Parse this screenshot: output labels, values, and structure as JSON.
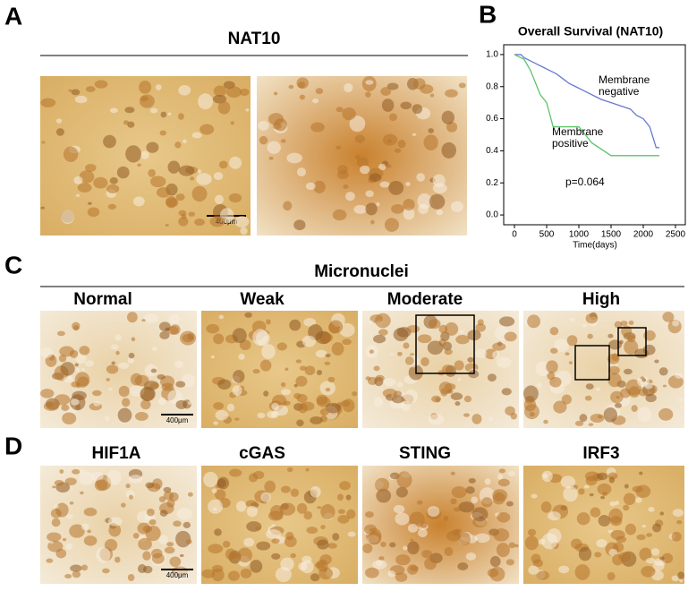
{
  "panels": {
    "A": {
      "letter": "A",
      "title": "NAT10",
      "scale_bar": "400μm"
    },
    "B": {
      "letter": "B"
    },
    "C": {
      "letter": "C",
      "title": "Micronuclei",
      "labels": [
        "Normal",
        "Weak",
        "Moderate",
        "High"
      ],
      "scale_bar": "400μm"
    },
    "D": {
      "letter": "D",
      "labels": [
        "HIF1A",
        "cGAS",
        "STING",
        "IRF3"
      ],
      "scale_bar": "400μm"
    }
  },
  "chart_data": {
    "type": "line",
    "title": "Overall Survival (NAT10)",
    "x_label": "Time(days)",
    "xlim": [
      -167,
      2653
    ],
    "ylim": [
      -0.061,
      1.061
    ],
    "xticks": [
      0,
      500,
      1000,
      1500,
      2000,
      2500
    ],
    "yticks": [
      {
        "value": 0,
        "label": "0.0"
      },
      0.2,
      0.4,
      0.6,
      0.8,
      {
        "value": 1,
        "label": "1.0"
      }
    ],
    "series": [
      {
        "color": "#6a78d0",
        "x": [
          0,
          100,
          150,
          250,
          350,
          450,
          550,
          650,
          750,
          850,
          950,
          1050,
          1150,
          1250,
          1350,
          1500,
          1650,
          1800,
          1900,
          2000,
          2100,
          2200,
          2250
        ],
        "values": [
          1.0,
          1.0,
          0.98,
          0.96,
          0.94,
          0.92,
          0.9,
          0.88,
          0.85,
          0.82,
          0.8,
          0.78,
          0.76,
          0.74,
          0.72,
          0.7,
          0.68,
          0.66,
          0.62,
          0.6,
          0.55,
          0.42,
          0.42
        ]
      },
      {
        "color": "#5fc46a",
        "x": [
          0,
          150,
          250,
          300,
          350,
          400,
          500,
          600,
          1000,
          1100,
          1200,
          1500,
          2250
        ],
        "values": [
          1.0,
          0.97,
          0.9,
          0.85,
          0.8,
          0.75,
          0.7,
          0.55,
          0.55,
          0.5,
          0.45,
          0.37,
          0.37
        ]
      }
    ],
    "annotations": [
      "Membrane",
      "negative",
      "Membrane",
      "positive",
      "p=0.064"
    ]
  }
}
